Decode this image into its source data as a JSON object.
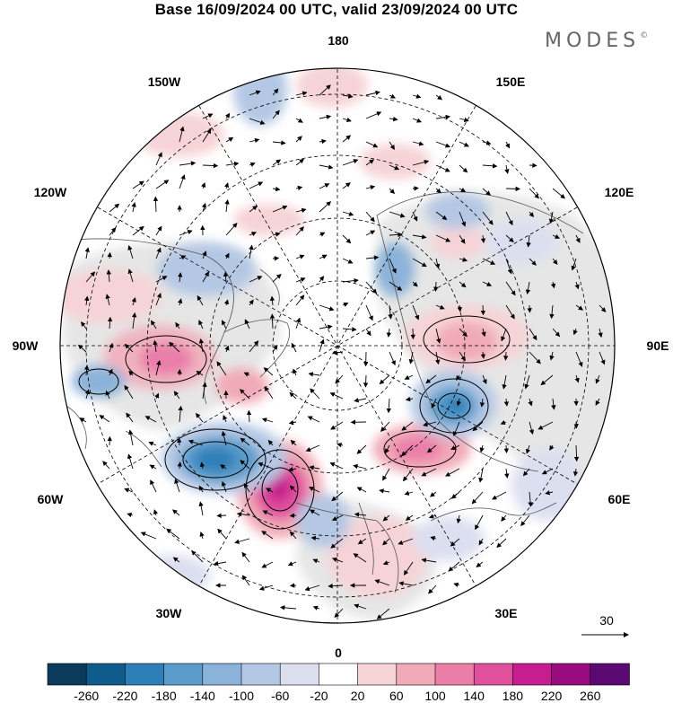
{
  "title": "Base 16/09/2024 00 UTC, valid 23/09/2024 00 UTC",
  "logo": "MODES",
  "logo_mark": "©",
  "map": {
    "longitude_labels": {
      "top": "180",
      "bottom": "0",
      "left": "90W",
      "right": "90E",
      "upper_left_1": "150W",
      "upper_left_2": "120W",
      "lower_left_1": "60W",
      "lower_left_2": "30W",
      "upper_right_1": "150E",
      "upper_right_2": "120E",
      "lower_right_1": "60E",
      "lower_right_2": "30E"
    },
    "projection": "north polar stereographic",
    "fields": [
      "height anomaly shading",
      "wind vectors"
    ]
  },
  "reference_vector": {
    "label": "30"
  },
  "colorbar": {
    "tick_labels": [
      "-260",
      "-220",
      "-180",
      "-140",
      "-100",
      "-60",
      "-20",
      "20",
      "60",
      "100",
      "140",
      "180",
      "220",
      "260"
    ],
    "colors": [
      "#0c3a5a",
      "#0f5b8c",
      "#2e7fb8",
      "#5a9ccb",
      "#8bb2d9",
      "#b4c7e4",
      "#dcdff0",
      "#ffffff",
      "#f6d3d6",
      "#f1aab8",
      "#ea7ea9",
      "#e0509c",
      "#c61e8e",
      "#9a0b80",
      "#5a0a72"
    ]
  }
}
